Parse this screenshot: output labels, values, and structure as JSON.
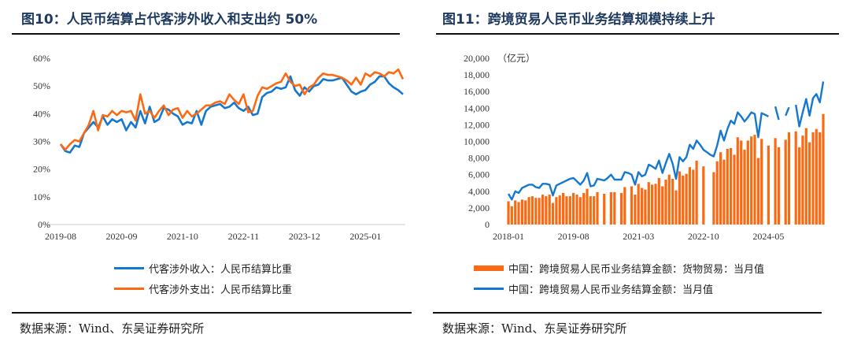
{
  "colors": {
    "blue": "#1578cf",
    "orange": "#fb6a12",
    "title": "#1f3a5f"
  },
  "chart_data": [
    {
      "type": "line",
      "title": "图10：人民币结算占代客涉外收入和支出约 50%",
      "xlabel": "",
      "ylabel": "",
      "x_start": "2019-08",
      "x_end": "2025-09",
      "frequency": "monthly",
      "x_ticks": [
        "2019-08",
        "2020-09",
        "2021-10",
        "2022-11",
        "2023-12",
        "2025-01"
      ],
      "y_ticks": [
        "0%",
        "10%",
        "20%",
        "30%",
        "40%",
        "50%",
        "60%"
      ],
      "ylim": [
        0,
        60
      ],
      "series": [
        {
          "name": "代客涉外收入：人民币结算比重",
          "color": "#1578cf",
          "values": [
            29,
            26.5,
            26,
            28.5,
            28,
            33,
            35,
            37,
            35,
            39,
            36,
            38,
            37,
            38,
            34,
            37,
            35,
            41,
            36.5,
            42.5,
            37,
            38,
            42,
            41.5,
            40,
            39,
            36,
            37,
            36.5,
            41,
            36,
            41,
            42.5,
            43,
            43.5,
            42,
            42.5,
            44,
            42,
            41,
            42.5,
            39.5,
            40,
            46,
            47.5,
            48,
            49.5,
            49,
            49.5,
            53.5,
            48.5,
            46.5,
            49.5,
            48,
            50,
            50.5,
            52.5,
            52,
            52,
            52.5,
            53,
            50.5,
            48,
            47,
            48,
            48.5,
            50.5,
            51.5,
            53.5,
            53.5,
            51,
            49.5,
            48.5,
            47
          ]
        },
        {
          "name": "代客涉外支出：人民币结算比重",
          "color": "#fb6a12",
          "values": [
            29,
            27,
            29,
            30.5,
            30,
            33,
            36,
            41,
            34,
            39.5,
            39,
            41,
            39.5,
            41,
            40.5,
            41,
            37.5,
            47,
            40,
            41,
            38.5,
            41,
            43,
            39.5,
            41.5,
            42,
            38.5,
            41,
            39,
            40,
            41.5,
            43,
            43,
            44,
            44.5,
            43.5,
            47,
            45,
            43.5,
            47,
            40.5,
            41,
            46.5,
            49.5,
            49,
            50,
            51,
            51.5,
            54.5,
            51.5,
            50,
            50.5,
            47,
            49.5,
            50.5,
            53,
            54.5,
            54,
            54,
            53.5,
            53,
            52,
            50.5,
            53,
            50.5,
            54.5,
            53.5,
            55,
            54.5,
            53.5,
            55,
            54.5,
            56,
            52.5
          ]
        }
      ],
      "source": "数据来源：Wind、东吴证券研究所"
    },
    {
      "type": "bar+line",
      "title": "图11：跨境贸易人民币业务结算规模持续上升",
      "unit": "（亿元）",
      "x_start": "2018-01",
      "x_end": "2025-09",
      "frequency": "monthly",
      "x_ticks": [
        "2018-01",
        "2019-08",
        "2021-03",
        "2022-10",
        "2024-05"
      ],
      "y_ticks": [
        "0",
        "2,000",
        "4,000",
        "6,000",
        "8,000",
        "10,000",
        "12,000",
        "14,000",
        "16,000",
        "18,000",
        "20,000"
      ],
      "ylim": [
        0,
        20000
      ],
      "series": [
        {
          "name": "中国：跨境贸易人民币业务结算金额：货物贸易：当月值",
          "kind": "bar",
          "color": "#fb6a12",
          "values": [
            2800,
            2200,
            2900,
            2700,
            3000,
            2900,
            3300,
            3400,
            3200,
            3200,
            3600,
            3400,
            3600,
            2600,
            3300,
            3500,
            3800,
            3400,
            3400,
            3800,
            3600,
            3300,
            3800,
            4300,
            3400,
            3400,
            3900,
            null,
            3700,
            null,
            3900,
            3900,
            null,
            3800,
            4500,
            null,
            4600,
            3600,
            4900,
            4400,
            4200,
            5100,
            4800,
            4900,
            5600,
            4600,
            5400,
            6000,
            5500,
            4100,
            6400,
            5900,
            6100,
            6900,
            6600,
            7700,
            null,
            7000,
            null,
            null,
            6300,
            7600,
            8700,
            7800,
            9100,
            9200,
            8400,
            10500,
            10100,
            9000,
            10100,
            10600,
            10800,
            8000,
            10300,
            null,
            9500,
            null,
            10400,
            9300,
            null,
            10200,
            11100,
            null,
            11200,
            9300,
            10700,
            11600,
            9900,
            11100,
            11500,
            11100,
            13300
          ]
        },
        {
          "name": "中国：跨境贸易人民币业务结算金额：当月值",
          "kind": "line",
          "color": "#1578cf",
          "values": [
            3700,
            3000,
            4000,
            3800,
            4400,
            4600,
            4800,
            4800,
            4500,
            4400,
            4900,
            4900,
            4800,
            3500,
            4700,
            4900,
            5100,
            5300,
            5500,
            5600,
            5200,
            4800,
            5300,
            6200,
            4600,
            4700,
            5500,
            5400,
            5300,
            5600,
            6000,
            5400,
            5400,
            5400,
            6300,
            6200,
            6000,
            4800,
            6300,
            5800,
            6000,
            7200,
            7000,
            6700,
            7700,
            6200,
            7400,
            8500,
            7300,
            5500,
            8100,
            7600,
            8100,
            9600,
            9100,
            10100,
            9600,
            9000,
            8700,
            8400,
            8200,
            9500,
            11300,
            10100,
            11500,
            12500,
            12100,
            13500,
            13000,
            12400,
            12900,
            13500,
            13300,
            10500,
            13400,
            13200,
            13000,
            null,
            14200,
            12600,
            null,
            13100,
            14100,
            null,
            14400,
            11800,
            13500,
            15100,
            13100,
            15200,
            15700,
            14700,
            17200
          ]
        }
      ],
      "source": "数据来源：Wind、东吴证券研究所"
    }
  ]
}
